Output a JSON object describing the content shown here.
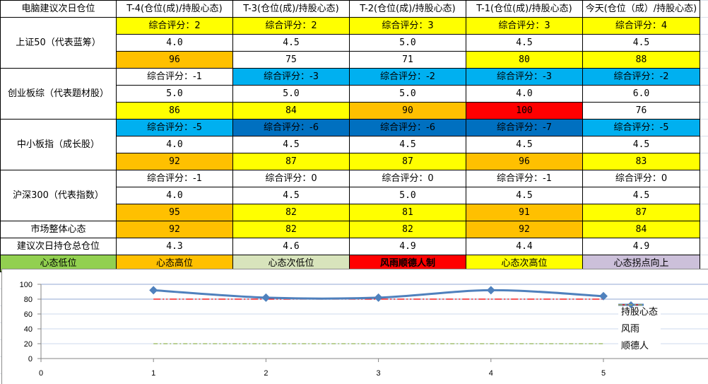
{
  "table": {
    "corner_label": "电脑建议次日仓位",
    "columns": [
      "T-4(仓位(成)/持股心态)",
      "T-3(仓位(成)/持股心态)",
      "T-2(仓位(成)/持股心态)",
      "T-1(仓位(成)/持股心态)",
      "今天(仓位（成）/持股心态)"
    ],
    "indices": [
      {
        "name": "上证50（代表蓝筹）",
        "scores": [
          "综合评分：2",
          "综合评分：2",
          "综合评分：3",
          "综合评分：3",
          "综合评分：4"
        ],
        "score_colors": [
          "#ffff00",
          "#ffff00",
          "#ffff00",
          "#ffff00",
          "#ffff00"
        ],
        "positions": [
          "4.0",
          "4.5",
          "5.0",
          "4.5",
          "4.5"
        ],
        "sentiment": [
          "96",
          "75",
          "71",
          "80",
          "88"
        ],
        "sentiment_colors": [
          "#ffc000",
          "#ffffff",
          "#ffffff",
          "#ffff00",
          "#ffff00"
        ]
      },
      {
        "name": "创业板综（代表题材股）",
        "scores": [
          "综合评分：-1",
          "综合评分：-3",
          "综合评分：-2",
          "综合评分：-3",
          "综合评分：-2"
        ],
        "score_colors": [
          "#ffffff",
          "#00b0f0",
          "#00b0f0",
          "#00b0f0",
          "#00b0f0"
        ],
        "positions": [
          "5.0",
          "5.0",
          "5.0",
          "4.0",
          "6.0"
        ],
        "sentiment": [
          "86",
          "84",
          "90",
          "100",
          "76"
        ],
        "sentiment_colors": [
          "#ffff00",
          "#ffff00",
          "#ffc000",
          "#ff0000",
          "#ffffff"
        ]
      },
      {
        "name": "中小板指（成长股）",
        "scores": [
          "综合评分：-5",
          "综合评分：-6",
          "综合评分：-6",
          "综合评分：-7",
          "综合评分：-5"
        ],
        "score_colors": [
          "#00b0f0",
          "#0070c0",
          "#0070c0",
          "#0070c0",
          "#00b0f0"
        ],
        "positions": [
          "4.0",
          "4.5",
          "4.5",
          "4.5",
          "4.5"
        ],
        "sentiment": [
          "92",
          "87",
          "87",
          "96",
          "83"
        ],
        "sentiment_colors": [
          "#ffc000",
          "#ffff00",
          "#ffff00",
          "#ffc000",
          "#ffff00"
        ]
      },
      {
        "name": "沪深300（代表指数）",
        "scores": [
          "综合评分：-1",
          "综合评分：0",
          "综合评分：0",
          "综合评分：-1",
          "综合评分：0"
        ],
        "score_colors": [
          "#ffffff",
          "#ffffff",
          "#ffffff",
          "#ffffff",
          "#ffffff"
        ],
        "positions": [
          "4.0",
          "4.5",
          "5.0",
          "4.5",
          "4.5"
        ],
        "sentiment": [
          "95",
          "82",
          "81",
          "91",
          "87"
        ],
        "sentiment_colors": [
          "#ffc000",
          "#ffff00",
          "#ffff00",
          "#ffc000",
          "#ffff00"
        ]
      }
    ],
    "market_sentiment": {
      "label": "市场整体心态",
      "values": [
        "92",
        "82",
        "82",
        "92",
        "84"
      ],
      "colors": [
        "#ffc000",
        "#ffff00",
        "#ffff00",
        "#ffc000",
        "#ffff00"
      ]
    },
    "suggested_position": {
      "label": "建议次日持仓总仓位",
      "values": [
        "4.3",
        "4.6",
        "4.9",
        "4.4",
        "4.9"
      ]
    },
    "color_legend": [
      {
        "label": "心态低位",
        "color": "#92d050",
        "bold": false
      },
      {
        "label": "心态高位",
        "color": "#ffc000",
        "bold": false
      },
      {
        "label": "心态次低位",
        "color": "#d8e4bc",
        "bold": false
      },
      {
        "label": "风雨顺德人制",
        "color": "#ff0000",
        "bold": true
      },
      {
        "label": "心态次高位",
        "color": "#ffff00",
        "bold": false
      },
      {
        "label": "心态拐点向上",
        "color": "#ccc0da",
        "bold": false
      }
    ]
  },
  "chart_data": {
    "type": "line",
    "title": "",
    "xlabel": "",
    "ylabel": "",
    "x": [
      1,
      2,
      3,
      4,
      5
    ],
    "x_ticks": [
      "0",
      "1",
      "2",
      "3",
      "4",
      "5"
    ],
    "y_ticks": [
      "0",
      "20",
      "40",
      "60",
      "80",
      "100"
    ],
    "ylim": [
      0,
      100
    ],
    "xlim": [
      0,
      6
    ],
    "grid": true,
    "legend_position": "right",
    "series": [
      {
        "name": "持股心态",
        "values": [
          92,
          82,
          82,
          92,
          84
        ],
        "color": "#4f81bd",
        "style": "solid-diamond"
      },
      {
        "name": "风雨",
        "values": [
          80,
          80,
          80,
          80,
          80
        ],
        "color": "#ff0000",
        "style": "dash-dot-dot"
      },
      {
        "name": "顺德人",
        "values": [
          20,
          20,
          20,
          20,
          20
        ],
        "color": "#9bbb59",
        "style": "dash-dot"
      }
    ]
  }
}
